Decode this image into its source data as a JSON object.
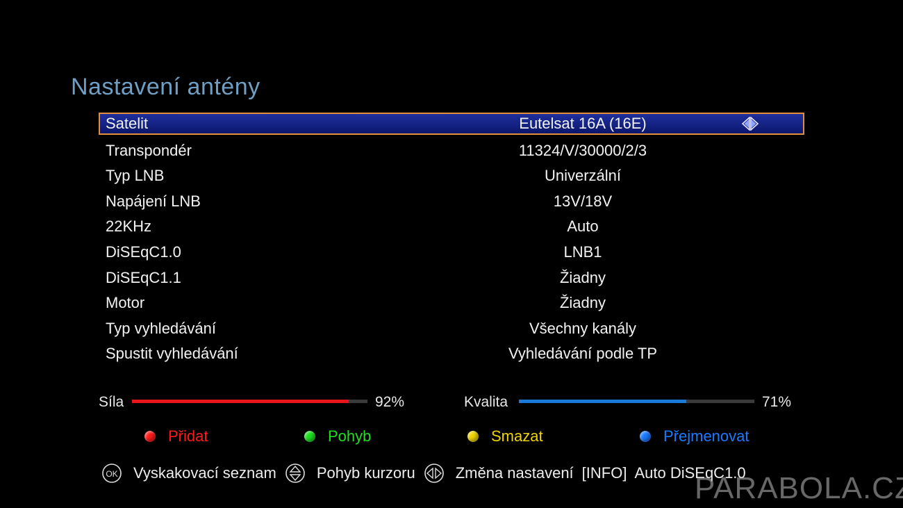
{
  "title": "Nastavení antény",
  "menu": {
    "rows": [
      {
        "label": "Satelit",
        "value": "Eutelsat 16A  (16E)"
      },
      {
        "label": "Transpondér",
        "value": "11324/V/30000/2/3"
      },
      {
        "label": "Typ LNB",
        "value": "Univerzální"
      },
      {
        "label": "Napájení LNB",
        "value": "13V/18V"
      },
      {
        "label": "22KHz",
        "value": "Auto"
      },
      {
        "label": "DiSEqC1.0",
        "value": "LNB1"
      },
      {
        "label": "DiSEqC1.1",
        "value": "Žiadny"
      },
      {
        "label": "Motor",
        "value": "Žiadny"
      },
      {
        "label": "Typ vyhledávání",
        "value": "Všechny kanály"
      },
      {
        "label": "Spustit vyhledávání",
        "value": "Vyhledávání podle TP"
      }
    ],
    "selected_index": 0,
    "selected_arrow_icon": "left-right-arrows-icon"
  },
  "signal": {
    "strength": {
      "label": "Síla",
      "percent_text": "92%",
      "percent": 92,
      "color": "#e8141c"
    },
    "quality": {
      "label": "Kvalita",
      "percent_text": "71%",
      "percent": 71,
      "color": "#1a7ad8"
    }
  },
  "color_keys": [
    {
      "label": "Přidat",
      "color": "#ff1a1a"
    },
    {
      "label": "Pohyb",
      "color": "#1ee01e"
    },
    {
      "label": "Smazat",
      "color": "#f0d400"
    },
    {
      "label": "Přejmenovat",
      "color": "#1a7aff"
    }
  ],
  "help": {
    "ok_icon": "ok-button-icon",
    "ok_text": "Vyskakovací seznam",
    "updown_icon": "up-down-button-icon",
    "updown_text": "Pohyb kurzoru",
    "leftright_icon": "left-right-button-icon",
    "leftright_text": "Změna nastavení",
    "info_text": "[INFO]  Auto DiSEqC1.0"
  },
  "watermark": "PARABOLA.CZ"
}
